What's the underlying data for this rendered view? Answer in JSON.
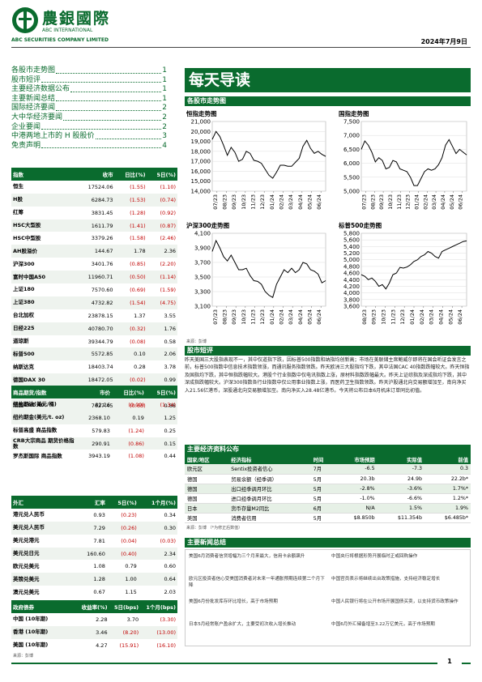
{
  "header": {
    "brand_cn": "農銀國際",
    "brand_en1": "ABC INTERNATIONAL",
    "brand_en2": "ABC SECURITIES COMPANY LIMITED",
    "date": "2024年7月9日"
  },
  "toc": [
    {
      "label": "各股市走势图",
      "page": "1"
    },
    {
      "label": "股市短评",
      "page": "1"
    },
    {
      "label": "主要经济数据公布",
      "page": "1"
    },
    {
      "label": "主要新闻总结",
      "page": "1"
    },
    {
      "label": "国际经济要闻",
      "page": "2"
    },
    {
      "label": "大中华经济要闻",
      "page": "2"
    },
    {
      "label": "企业要闻",
      "page": "2"
    },
    {
      "label": "中港两地上市的 H 股股价",
      "page": "3"
    },
    {
      "label": "免责声明",
      "page": "4"
    }
  ],
  "title": "每天导读",
  "charts_section": "各股市走势图",
  "charts": {
    "hsi_title": "恒指走势图",
    "hscei_title": "国指走势图",
    "csi300_title": "沪深300走势图",
    "sp500_title": "标普500走势图",
    "x_ticks": [
      "07/23",
      "08/23",
      "09/23",
      "10/23",
      "11/23",
      "12/23",
      "01/24",
      "02/24",
      "03/24",
      "04/24",
      "05/24",
      "06/24"
    ],
    "sp_x_ticks": [
      "08/23",
      "09/23",
      "10/23",
      "11/23",
      "12/23",
      "01/24",
      "02/24",
      "03/24",
      "04/24",
      "05/24",
      "06/24"
    ],
    "source": "来源：彭博"
  },
  "chart_data": [
    {
      "type": "line",
      "title": "恒指走势图",
      "ylim": [
        14000,
        21000
      ],
      "yticks": [
        "21,000",
        "20,000",
        "19,000",
        "18,000",
        "17,000",
        "16,000",
        "15,000",
        "14,000"
      ],
      "values": [
        19200,
        20000,
        19500,
        18600,
        17600,
        18400,
        17900,
        17000,
        17200,
        18000,
        17800,
        17100,
        17000,
        16800,
        16200,
        15600,
        15300,
        15900,
        16600,
        16600,
        16500,
        16500,
        16900,
        17300,
        18500,
        19100,
        18300,
        17800,
        18000,
        17700,
        17500
      ]
    },
    {
      "type": "line",
      "title": "国指走势图",
      "ylim": [
        5000,
        7500
      ],
      "yticks": [
        "7,500",
        "7,000",
        "6,500",
        "6,000",
        "5,500",
        "5,000"
      ],
      "values": [
        6500,
        6800,
        6650,
        6400,
        6050,
        6200,
        6100,
        5800,
        5850,
        6100,
        6050,
        5800,
        5750,
        5700,
        5500,
        5200,
        5200,
        5450,
        5700,
        5800,
        5750,
        5800,
        5950,
        6200,
        6650,
        6850,
        6600,
        6350,
        6500,
        6400,
        6300
      ]
    },
    {
      "type": "line",
      "title": "沪深300走势图",
      "ylim": [
        3100,
        4100
      ],
      "yticks": [
        "4,100",
        "3,900",
        "3,700",
        "3,500",
        "3,300",
        "3,100"
      ],
      "values": [
        3850,
        4000,
        3900,
        3780,
        3720,
        3800,
        3700,
        3600,
        3600,
        3620,
        3520,
        3450,
        3440,
        3400,
        3300,
        3250,
        3220,
        3400,
        3500,
        3600,
        3560,
        3620,
        3560,
        3600,
        3700,
        3680,
        3600,
        3580,
        3540,
        3420,
        3450
      ]
    },
    {
      "type": "line",
      "title": "标普500走势图",
      "ylim": [
        3600,
        5800
      ],
      "yticks": [
        "5,800",
        "5,600",
        "5,400",
        "5,200",
        "5,000",
        "4,800",
        "4,600",
        "4,400",
        "4,200",
        "4,000",
        "3,800",
        "3,600"
      ],
      "values": [
        4550,
        4500,
        4400,
        4450,
        4350,
        4200,
        4250,
        4120,
        4300,
        4550,
        4600,
        4770,
        4750,
        4780,
        4850,
        4950,
        5000,
        5100,
        5150,
        5250,
        5200,
        5100,
        5050,
        5250,
        5300,
        5350,
        5400,
        5450,
        5500,
        5550,
        5570
      ]
    }
  ],
  "index_table": {
    "headers": [
      "指数",
      "收市",
      "日比(%)",
      "5日(%)"
    ],
    "rows": [
      {
        "name": "恒生",
        "close": "17524.06",
        "d": "(1.55)",
        "w": "(1.10)",
        "dn": true,
        "wn": true
      },
      {
        "name": "H股",
        "close": "6284.73",
        "d": "(1.53)",
        "w": "(0.74)",
        "dn": true,
        "wn": true
      },
      {
        "name": "红筹",
        "close": "3831.45",
        "d": "(1.28)",
        "w": "(0.92)",
        "dn": true,
        "wn": true
      },
      {
        "name": "HSC大型股",
        "close": "1611.79",
        "d": "(1.41)",
        "w": "(0.87)",
        "dn": true,
        "wn": true
      },
      {
        "name": "HSC中型股",
        "close": "3379.26",
        "d": "(1.58)",
        "w": "(2.46)",
        "dn": true,
        "wn": true
      },
      {
        "name": "AH股溢价",
        "close": "144.67",
        "d": "1.78",
        "w": "2.36",
        "dn": false,
        "wn": false
      },
      {
        "name": "沪深300",
        "close": "3401.76",
        "d": "(0.85)",
        "w": "(2.20)",
        "dn": true,
        "wn": true
      },
      {
        "name": "富时中国A50",
        "close": "11960.71",
        "d": "(0.50)",
        "w": "(1.14)",
        "dn": true,
        "wn": true
      },
      {
        "name": "上证180",
        "close": "7570.60",
        "d": "(0.69)",
        "w": "(1.59)",
        "dn": true,
        "wn": true
      },
      {
        "name": "上证380",
        "close": "4732.82",
        "d": "(1.54)",
        "w": "(4.75)",
        "dn": true,
        "wn": true
      },
      {
        "name": "台北加权",
        "close": "23878.15",
        "d": "1.37",
        "w": "3.55",
        "dn": false,
        "wn": false
      },
      {
        "name": "日经225",
        "close": "40780.70",
        "d": "(0.32)",
        "w": "1.76",
        "dn": true,
        "wn": false
      },
      {
        "name": "道琼斯",
        "close": "39344.79",
        "d": "(0.08)",
        "w": "0.58",
        "dn": true,
        "wn": false
      },
      {
        "name": "标普500",
        "close": "5572.85",
        "d": "0.10",
        "w": "2.06",
        "dn": false,
        "wn": false
      },
      {
        "name": "纳斯达克",
        "close": "18403.74",
        "d": "0.28",
        "w": "3.78",
        "dn": false,
        "wn": false
      },
      {
        "name": "德国DAX 30",
        "close": "18472.05",
        "d": "(0.02)",
        "w": "0.99",
        "dn": true,
        "wn": false
      },
      {
        "name": "富时100",
        "close": "8193.49",
        "d": "(0.13)",
        "w": "0.33",
        "dn": true,
        "wn": false
      },
      {
        "name": "法国CAC 40",
        "close": "7627.45",
        "d": "(0.63)",
        "w": "0.88",
        "dn": true,
        "wn": false
      }
    ]
  },
  "commodity_table": {
    "headers": [
      "商品期货/指数",
      "市价",
      "日比(%)",
      "5日(%)"
    ],
    "rows": [
      {
        "name": "纽约期油(美元/桶)",
        "close": "82.26",
        "d": "(0.09)",
        "w": "(1.34)",
        "dn": true,
        "wn": true
      },
      {
        "name": "纽约期金(美元/t. oz)",
        "close": "2368.10",
        "d": "0.19",
        "w": "1.25",
        "dn": false,
        "wn": false
      },
      {
        "name": "标普高盛 商品指数",
        "close": "579.83",
        "d": "(1.24)",
        "w": "0.25",
        "dn": true,
        "wn": false
      },
      {
        "name": "CRB大宗商品 期货价格指数",
        "close": "290.91",
        "d": "(0.86)",
        "w": "0.15",
        "dn": true,
        "wn": false
      },
      {
        "name": "罗杰斯国际 商品指数",
        "close": "3943.19",
        "d": "(1.08)",
        "w": "0.44",
        "dn": true,
        "wn": false
      }
    ]
  },
  "fx_table": {
    "headers": [
      "外汇",
      "汇率",
      "5日(%)",
      "1个月(%)"
    ],
    "rows": [
      {
        "name": "港元兑人民币",
        "close": "0.93",
        "d": "(0.23)",
        "w": "0.34",
        "dn": true,
        "wn": false
      },
      {
        "name": "美元兑人民币",
        "close": "7.29",
        "d": "(0.26)",
        "w": "0.30",
        "dn": true,
        "wn": false
      },
      {
        "name": "美元兑港元",
        "close": "7.81",
        "d": "(0.04)",
        "w": "(0.03)",
        "dn": true,
        "wn": true
      },
      {
        "name": "美元兑日元",
        "close": "160.60",
        "d": "(0.40)",
        "w": "2.34",
        "dn": true,
        "wn": false
      },
      {
        "name": "欧元兑美元",
        "close": "1.08",
        "d": "0.79",
        "w": "0.60",
        "dn": false,
        "wn": false
      },
      {
        "name": "英镑兑美元",
        "close": "1.28",
        "d": "1.00",
        "w": "0.64",
        "dn": false,
        "wn": false
      },
      {
        "name": "澳元兑美元",
        "close": "0.67",
        "d": "1.15",
        "w": "2.03",
        "dn": false,
        "wn": false
      }
    ]
  },
  "bond_table": {
    "headers": [
      "政府债券",
      "收益率(%)",
      "5日(bps)",
      "1个月(bps)"
    ],
    "rows": [
      {
        "name": "中国 (10年期)",
        "close": "2.28",
        "d": "3.70",
        "w": "(3.30)",
        "dn": false,
        "wn": true
      },
      {
        "name": "香港 (10年期)",
        "close": "3.46",
        "d": "(8.20)",
        "w": "(13.00)",
        "dn": true,
        "wn": true
      },
      {
        "name": "美国 (10年期)",
        "close": "4.27",
        "d": "(15.91)",
        "w": "(16.10)",
        "dn": true,
        "wn": true
      }
    ],
    "source": "来源：彭博"
  },
  "comment": {
    "title": "股市短评",
    "text": "昨天美国三大股指表现不一，其中仅道指下跌，因标普500指数和纳指均创新高；市场在美联储主席鲍威尔即将在国会听证会发言之前，标普500指数中信息技术指数领涨，而通讯服务指数领跌。昨天欧洲三大股指均下跌，其中法国CAC 40指数跌幅较大。昨天恒指及国指均下跌，其中恒指跌幅较大。港股个行业指数中仅电讯指数上涨，原材料指数跌幅最大。昨天上证综指及深成指均下跌，其中深成指跌幅较大。沪深300指数各行业指数中仅公用事业指数上涨，而医药卫生指数领跌。昨天沪股通北向交易额增加至，南向净买入21.56亿港币，深股通北向交易额增加至。南向净买入28.48亿港币。今天将公布日本6月机床订单同比初值。"
  },
  "eco": {
    "title": "主要经济资料公布",
    "headers": [
      "国家/地区",
      "经济指标",
      "时间",
      "市场预期",
      "实际值",
      "前值"
    ],
    "rows": [
      {
        "c": "欧元区",
        "i": "Sentix投资者信心",
        "t": "7月",
        "e": "-6.5",
        "a": "-7.3",
        "p": "0.3"
      },
      {
        "c": "德国",
        "i": "贸易余额（经季调）",
        "t": "5月",
        "e": "20.3b",
        "a": "24.9b",
        "p": "22.2b*"
      },
      {
        "c": "德国",
        "i": "出口经季调月环比",
        "t": "5月",
        "e": "-2.8%",
        "a": "-3.6%",
        "p": "1.7%*"
      },
      {
        "c": "德国",
        "i": "进口经季调月环比",
        "t": "5月",
        "e": "-1.0%",
        "a": "-6.6%",
        "p": "1.2%*"
      },
      {
        "c": "日本",
        "i": "货币存量M2同比",
        "t": "6月",
        "e": "N/A",
        "a": "1.5%",
        "p": "1.9%"
      },
      {
        "c": "美国",
        "i": "消费者信用",
        "t": "5月",
        "e": "$8.850b",
        "a": "$11.354b",
        "p": "$6.485b*"
      }
    ],
    "source": "来源：彭博 （*为修正后数值）"
  },
  "news": {
    "title": "主要新闻总结",
    "items": [
      "美国6月消费者信贷增幅为三个月来最大，信用卡余额飙升",
      "中国央行将根据形势开展临时正或回购操作",
      "欧元区投资者信心受美国消费者对未来一年通胀预期连续第二个月下降",
      "中国官员表示将继续出台政策措施，支持经济稳定增长",
      "美国6月份批发库存环比增长，高于市场预期",
      "中国人民银行将在公开市场开展国债买卖，以支持货币政策操作",
      "日本5月经常账户盈余扩大，主要受初次收入增长推动",
      "中国6月外汇储备增至3.22万亿美元，高于市场预期"
    ]
  },
  "footer": {
    "page": "1"
  },
  "colors": {
    "brand": "#0a6b2e",
    "negative": "#c00000"
  }
}
